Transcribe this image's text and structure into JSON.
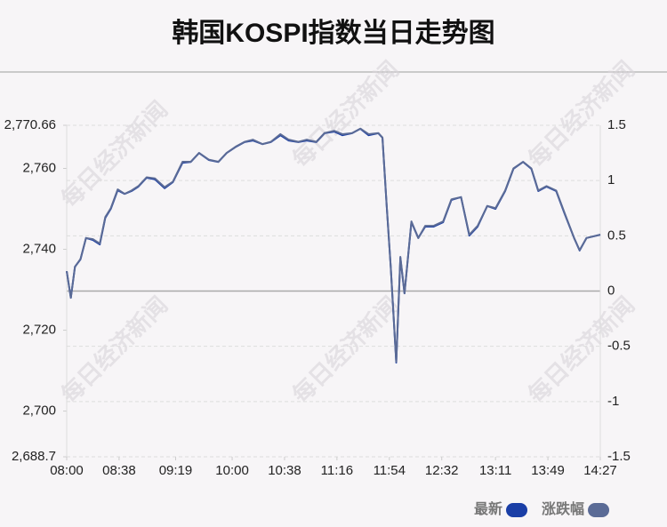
{
  "chart_data": {
    "type": "line",
    "title": "韩国KOSPI指数当日走势图",
    "watermark": "每日经济新闻",
    "x": [
      "08:00",
      "08:03",
      "08:06",
      "08:10",
      "08:14",
      "08:19",
      "08:24",
      "08:28",
      "08:32",
      "08:37",
      "08:42",
      "08:47",
      "08:52",
      "08:58",
      "09:04",
      "09:11",
      "09:17",
      "09:24",
      "09:30",
      "09:36",
      "09:43",
      "09:50",
      "09:56",
      "10:03",
      "10:09",
      "10:15",
      "10:22",
      "10:28",
      "10:35",
      "10:41",
      "10:48",
      "10:54",
      "11:01",
      "11:07",
      "11:14",
      "11:20",
      "11:27",
      "11:33",
      "11:39",
      "11:46",
      "11:49",
      "11:52",
      "11:55",
      "11:59",
      "12:02",
      "12:05",
      "12:10",
      "12:15",
      "12:20",
      "12:26",
      "12:33",
      "12:39",
      "12:46",
      "12:52",
      "12:58",
      "13:05",
      "13:11",
      "13:18",
      "13:24",
      "13:31",
      "13:37",
      "13:42",
      "13:48",
      "13:55",
      "14:01",
      "14:08",
      "14:12",
      "14:17",
      "14:27"
    ],
    "series": [
      {
        "name": "最新",
        "color": "#1a3ea6",
        "values": [
          2734.6,
          2728.0,
          2735.7,
          2737.5,
          2742.8,
          2742.3,
          2741.2,
          2747.8,
          2750.0,
          2754.6,
          2753.7,
          2754.4,
          2755.5,
          2757.7,
          2757.3,
          2755.1,
          2756.6,
          2761.4,
          2761.6,
          2763.8,
          2762.1,
          2761.6,
          2763.8,
          2765.4,
          2766.5,
          2766.9,
          2766.0,
          2766.5,
          2768.2,
          2766.9,
          2766.5,
          2766.9,
          2766.5,
          2768.7,
          2769.1,
          2768.2,
          2768.7,
          2769.8,
          2768.2,
          2768.7,
          2767.6,
          2751.1,
          2735.7,
          2712.0,
          2737.9,
          2729.1,
          2746.7,
          2742.8,
          2745.6,
          2745.6,
          2746.7,
          2752.2,
          2752.9,
          2743.4,
          2745.6,
          2750.7,
          2750.0,
          2754.4,
          2759.9,
          2761.6,
          2759.9,
          2754.4,
          2755.5,
          2754.4,
          2748.9,
          2742.8,
          2739.7,
          2742.8,
          2743.6
        ]
      },
      {
        "name": "涨跌幅",
        "color": "#5b6b96",
        "axis": "y2",
        "values": [
          0.18,
          -0.06,
          0.22,
          0.29,
          0.48,
          0.47,
          0.43,
          0.67,
          0.75,
          0.92,
          0.88,
          0.91,
          0.95,
          1.03,
          1.02,
          0.94,
          0.99,
          1.17,
          1.17,
          1.25,
          1.19,
          1.17,
          1.25,
          1.31,
          1.35,
          1.37,
          1.33,
          1.35,
          1.42,
          1.37,
          1.35,
          1.37,
          1.35,
          1.43,
          1.45,
          1.42,
          1.43,
          1.47,
          1.42,
          1.43,
          1.39,
          0.79,
          0.22,
          -0.64,
          0.31,
          -0.02,
          0.63,
          0.48,
          0.59,
          0.59,
          0.63,
          0.83,
          0.85,
          0.51,
          0.59,
          0.77,
          0.75,
          0.91,
          1.11,
          1.17,
          1.11,
          0.91,
          0.95,
          0.91,
          0.71,
          0.48,
          0.37,
          0.48,
          0.51
        ]
      }
    ],
    "xlim": [
      "08:00",
      "14:27"
    ],
    "xticks": [
      "08:00",
      "08:38",
      "09:19",
      "10:00",
      "10:38",
      "11:16",
      "11:54",
      "12:32",
      "13:11",
      "13:49",
      "14:27"
    ],
    "ylim": [
      2688.7,
      2770.66
    ],
    "yticks": [
      {
        "value": 2688.7,
        "label": "2,688.7"
      },
      {
        "value": 2700,
        "label": "2,700"
      },
      {
        "value": 2720,
        "label": "2,720"
      },
      {
        "value": 2740,
        "label": "2,740"
      },
      {
        "value": 2760,
        "label": "2,760"
      },
      {
        "value": 2770.66,
        "label": "2,770.66"
      }
    ],
    "y2lim": [
      -1.5,
      1.5
    ],
    "y2ticks": [
      -1.5,
      -1,
      -0.5,
      0,
      0.5,
      1,
      1.5
    ],
    "grid": true
  }
}
